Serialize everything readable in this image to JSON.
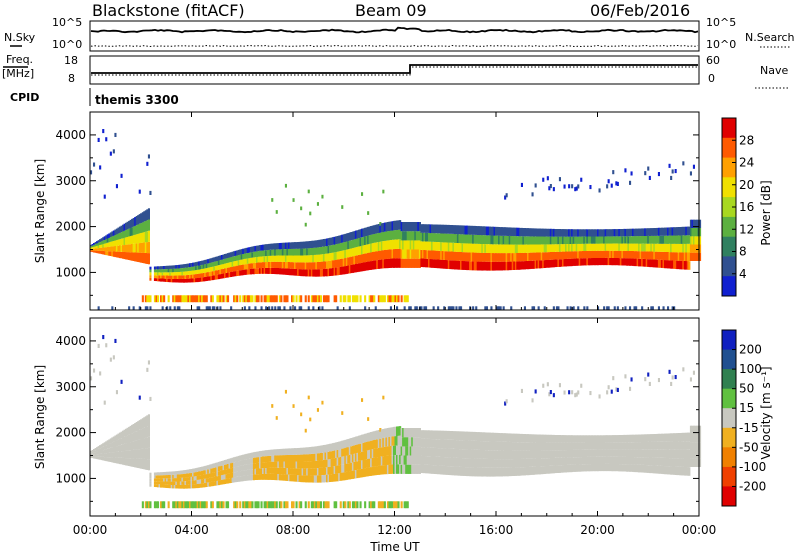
{
  "header": {
    "title": "Blackstone (fitACF)",
    "beam": "Beam 09",
    "date": "06/Feb/2016"
  },
  "top_panels": {
    "nsky_label": "N.Sky",
    "nsky_ticks": [
      "10^5",
      "10^0"
    ],
    "nsearch_label": "N.Search",
    "nsearch_ticks": [
      "10^5",
      "10^0"
    ],
    "freq_label": "Freq.",
    "freq_unit": "[MHz]",
    "freq_ticks": [
      "18",
      "8"
    ],
    "nave_label": "Nave",
    "nave_ticks": [
      "60",
      "0"
    ],
    "cpid_label": "CPID",
    "cpid_value": "themis 3300"
  },
  "chart_data": [
    {
      "type": "heatmap",
      "name": "power",
      "ylabel": "Slant Range [km]",
      "yticks": [
        "4000",
        "3000",
        "2000",
        "1000"
      ],
      "colorbar_label": "Power [dB]",
      "colorbar_ticks": [
        "28",
        "24",
        "20",
        "16",
        "12",
        "8",
        "4"
      ],
      "colorbar_colors": [
        "#e00000",
        "#ff5a00",
        "#ffa000",
        "#f0e000",
        "#a8d820",
        "#5cb040",
        "#308060",
        "#305090",
        "#1020d0"
      ],
      "ylim": [
        180,
        4500
      ],
      "xlim": [
        "00:00",
        "24:00"
      ]
    },
    {
      "type": "heatmap",
      "name": "velocity",
      "ylabel": "Slant Range [km]",
      "yticks": [
        "4000",
        "3000",
        "2000",
        "1000"
      ],
      "colorbar_label": "Velocity [m s⁻¹]",
      "colorbar_ticks": [
        "200",
        "100",
        "50",
        "15",
        "-15",
        "-50",
        "-100",
        "-200"
      ],
      "colorbar_colors": [
        "#1020c0",
        "#205090",
        "#308050",
        "#60c040",
        "#c8c8c0",
        "#f0b020",
        "#f08000",
        "#f04000",
        "#e00000"
      ],
      "ylim": [
        180,
        4500
      ],
      "xlim": [
        "00:00",
        "24:00"
      ]
    }
  ],
  "x_axis": {
    "ticks": [
      "00:00",
      "04:00",
      "08:00",
      "12:00",
      "16:00",
      "20:00",
      "00:00"
    ],
    "label": "Time UT"
  }
}
